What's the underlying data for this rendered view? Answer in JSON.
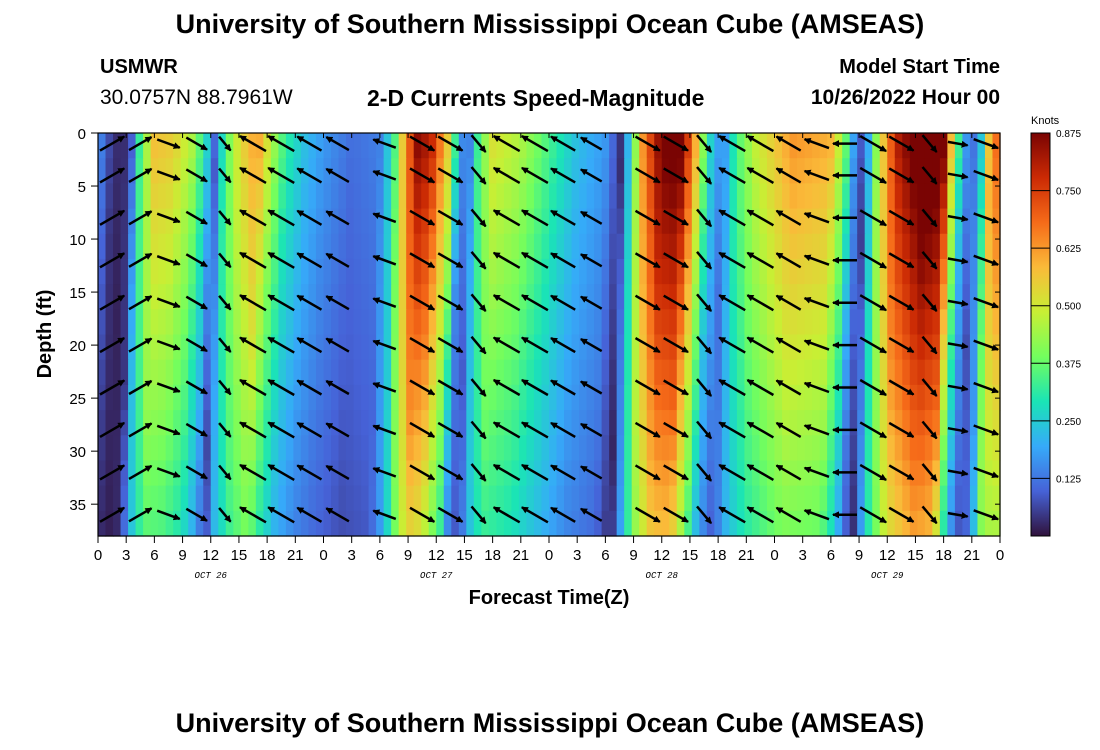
{
  "header": {
    "title": "University of Southern Mississippi Ocean Cube (AMSEAS)",
    "station": "USMWR",
    "coordinates": "30.0757N  88.7961W",
    "product": "2-D Currents Speed-Magnitude",
    "model_start_label": "Model Start Time",
    "model_start_value": "10/26/2022 Hour 00"
  },
  "footer": {
    "title": "University of Southern Mississippi Ocean Cube (AMSEAS)"
  },
  "chart_data": {
    "type": "heatmap",
    "title": "2-D Currents Speed-Magnitude",
    "xlabel": "Forecast Time(Z)",
    "ylabel": "Depth (ft)",
    "xlim": [
      0,
      96
    ],
    "ylim": [
      0,
      38
    ],
    "y_inverted": true,
    "x_tick_hours": [
      0,
      3,
      6,
      9,
      12,
      15,
      18,
      21,
      24,
      27,
      30,
      33,
      36,
      39,
      42,
      45,
      48,
      51,
      54,
      57,
      60,
      63,
      66,
      69,
      72,
      75,
      78,
      81,
      84,
      87,
      90,
      93,
      96
    ],
    "x_tick_labels": [
      "0",
      "3",
      "6",
      "9",
      "12",
      "15",
      "18",
      "21",
      "0",
      "3",
      "6",
      "9",
      "12",
      "15",
      "18",
      "21",
      "0",
      "3",
      "6",
      "9",
      "12",
      "15",
      "18",
      "21",
      "0",
      "3",
      "6",
      "9",
      "12",
      "15",
      "18",
      "21",
      "0"
    ],
    "y_ticks": [
      0,
      5,
      10,
      15,
      20,
      25,
      30,
      35
    ],
    "date_labels": [
      {
        "hour": 12,
        "text": "OCT 26"
      },
      {
        "hour": 36,
        "text": "OCT 27"
      },
      {
        "hour": 60,
        "text": "OCT 28"
      },
      {
        "hour": 84,
        "text": "OCT 29"
      }
    ],
    "colorbar": {
      "label": "Knots",
      "min": 0,
      "max": 0.875,
      "ticks": [
        0.125,
        0.25,
        0.375,
        0.5,
        0.625,
        0.75,
        0.875
      ],
      "tick_labels": [
        "0.125",
        "0.250",
        "0.375",
        "0.500",
        "0.625",
        "0.750",
        "0.875"
      ],
      "colors": [
        "#30123b",
        "#4662d7",
        "#36aaf9",
        "#1ae4b6",
        "#72fe5e",
        "#c8ef34",
        "#faba39",
        "#f66b19",
        "#cb2a04",
        "#7a0403"
      ]
    },
    "speed_profile": {
      "hours": [
        0,
        1.5,
        2.5,
        3.5,
        4.5,
        6,
        8,
        10,
        11.5,
        12.5,
        13.5,
        15,
        17,
        18.5,
        20,
        22,
        24,
        27,
        30,
        31.5,
        32.5,
        34,
        35.5,
        37.5,
        38.5,
        39.5,
        40.5,
        42,
        45,
        48,
        51,
        54,
        55,
        55.7,
        56.5,
        58,
        60,
        62,
        63.5,
        65,
        66.5,
        68,
        70,
        74,
        78,
        79.5,
        80.5,
        81.5,
        83,
        85,
        88,
        90,
        91,
        92,
        93,
        94,
        95,
        96
      ],
      "knots": [
        0.15,
        0.04,
        0.02,
        0.05,
        0.3,
        0.5,
        0.48,
        0.4,
        0.25,
        0.08,
        0.3,
        0.45,
        0.55,
        0.4,
        0.28,
        0.2,
        0.15,
        0.1,
        0.12,
        0.28,
        0.5,
        0.75,
        0.7,
        0.45,
        0.15,
        0.1,
        0.3,
        0.45,
        0.4,
        0.3,
        0.2,
        0.15,
        0.08,
        0.03,
        0.2,
        0.55,
        0.78,
        0.8,
        0.55,
        0.25,
        0.12,
        0.3,
        0.42,
        0.55,
        0.52,
        0.35,
        0.15,
        0.05,
        0.4,
        0.7,
        0.85,
        0.8,
        0.45,
        0.2,
        0.08,
        0.2,
        0.55,
        0.62
      ],
      "surface_factor": 1.15,
      "bottom_factor": 0.72
    },
    "vectors": {
      "hours": [
        1.5,
        4.5,
        7.5,
        10.5,
        13.5,
        16.5,
        19.5,
        22.5,
        25.5,
        30.5,
        34.5,
        37.5,
        40.5,
        43.5,
        46.5,
        49.5,
        52.5,
        58.5,
        61.5,
        64.5,
        67.5,
        70.5,
        73.5,
        76.5,
        79.5,
        82.5,
        85.5,
        88.5,
        91.5,
        94.5
      ],
      "depths": [
        1,
        4,
        8,
        12,
        16,
        20,
        24,
        28,
        32,
        36
      ],
      "direction_deg": [
        60,
        60,
        110,
        120,
        140,
        300,
        300,
        300,
        300,
        290,
        120,
        120,
        140,
        300,
        300,
        300,
        300,
        120,
        120,
        140,
        300,
        300,
        300,
        290,
        270,
        120,
        120,
        140,
        100,
        110
      ],
      "length_px": [
        28,
        26,
        24,
        24,
        18,
        30,
        30,
        28,
        26,
        24,
        28,
        28,
        22,
        30,
        30,
        28,
        24,
        28,
        28,
        22,
        30,
        30,
        28,
        26,
        24,
        30,
        28,
        22,
        20,
        26
      ]
    }
  }
}
